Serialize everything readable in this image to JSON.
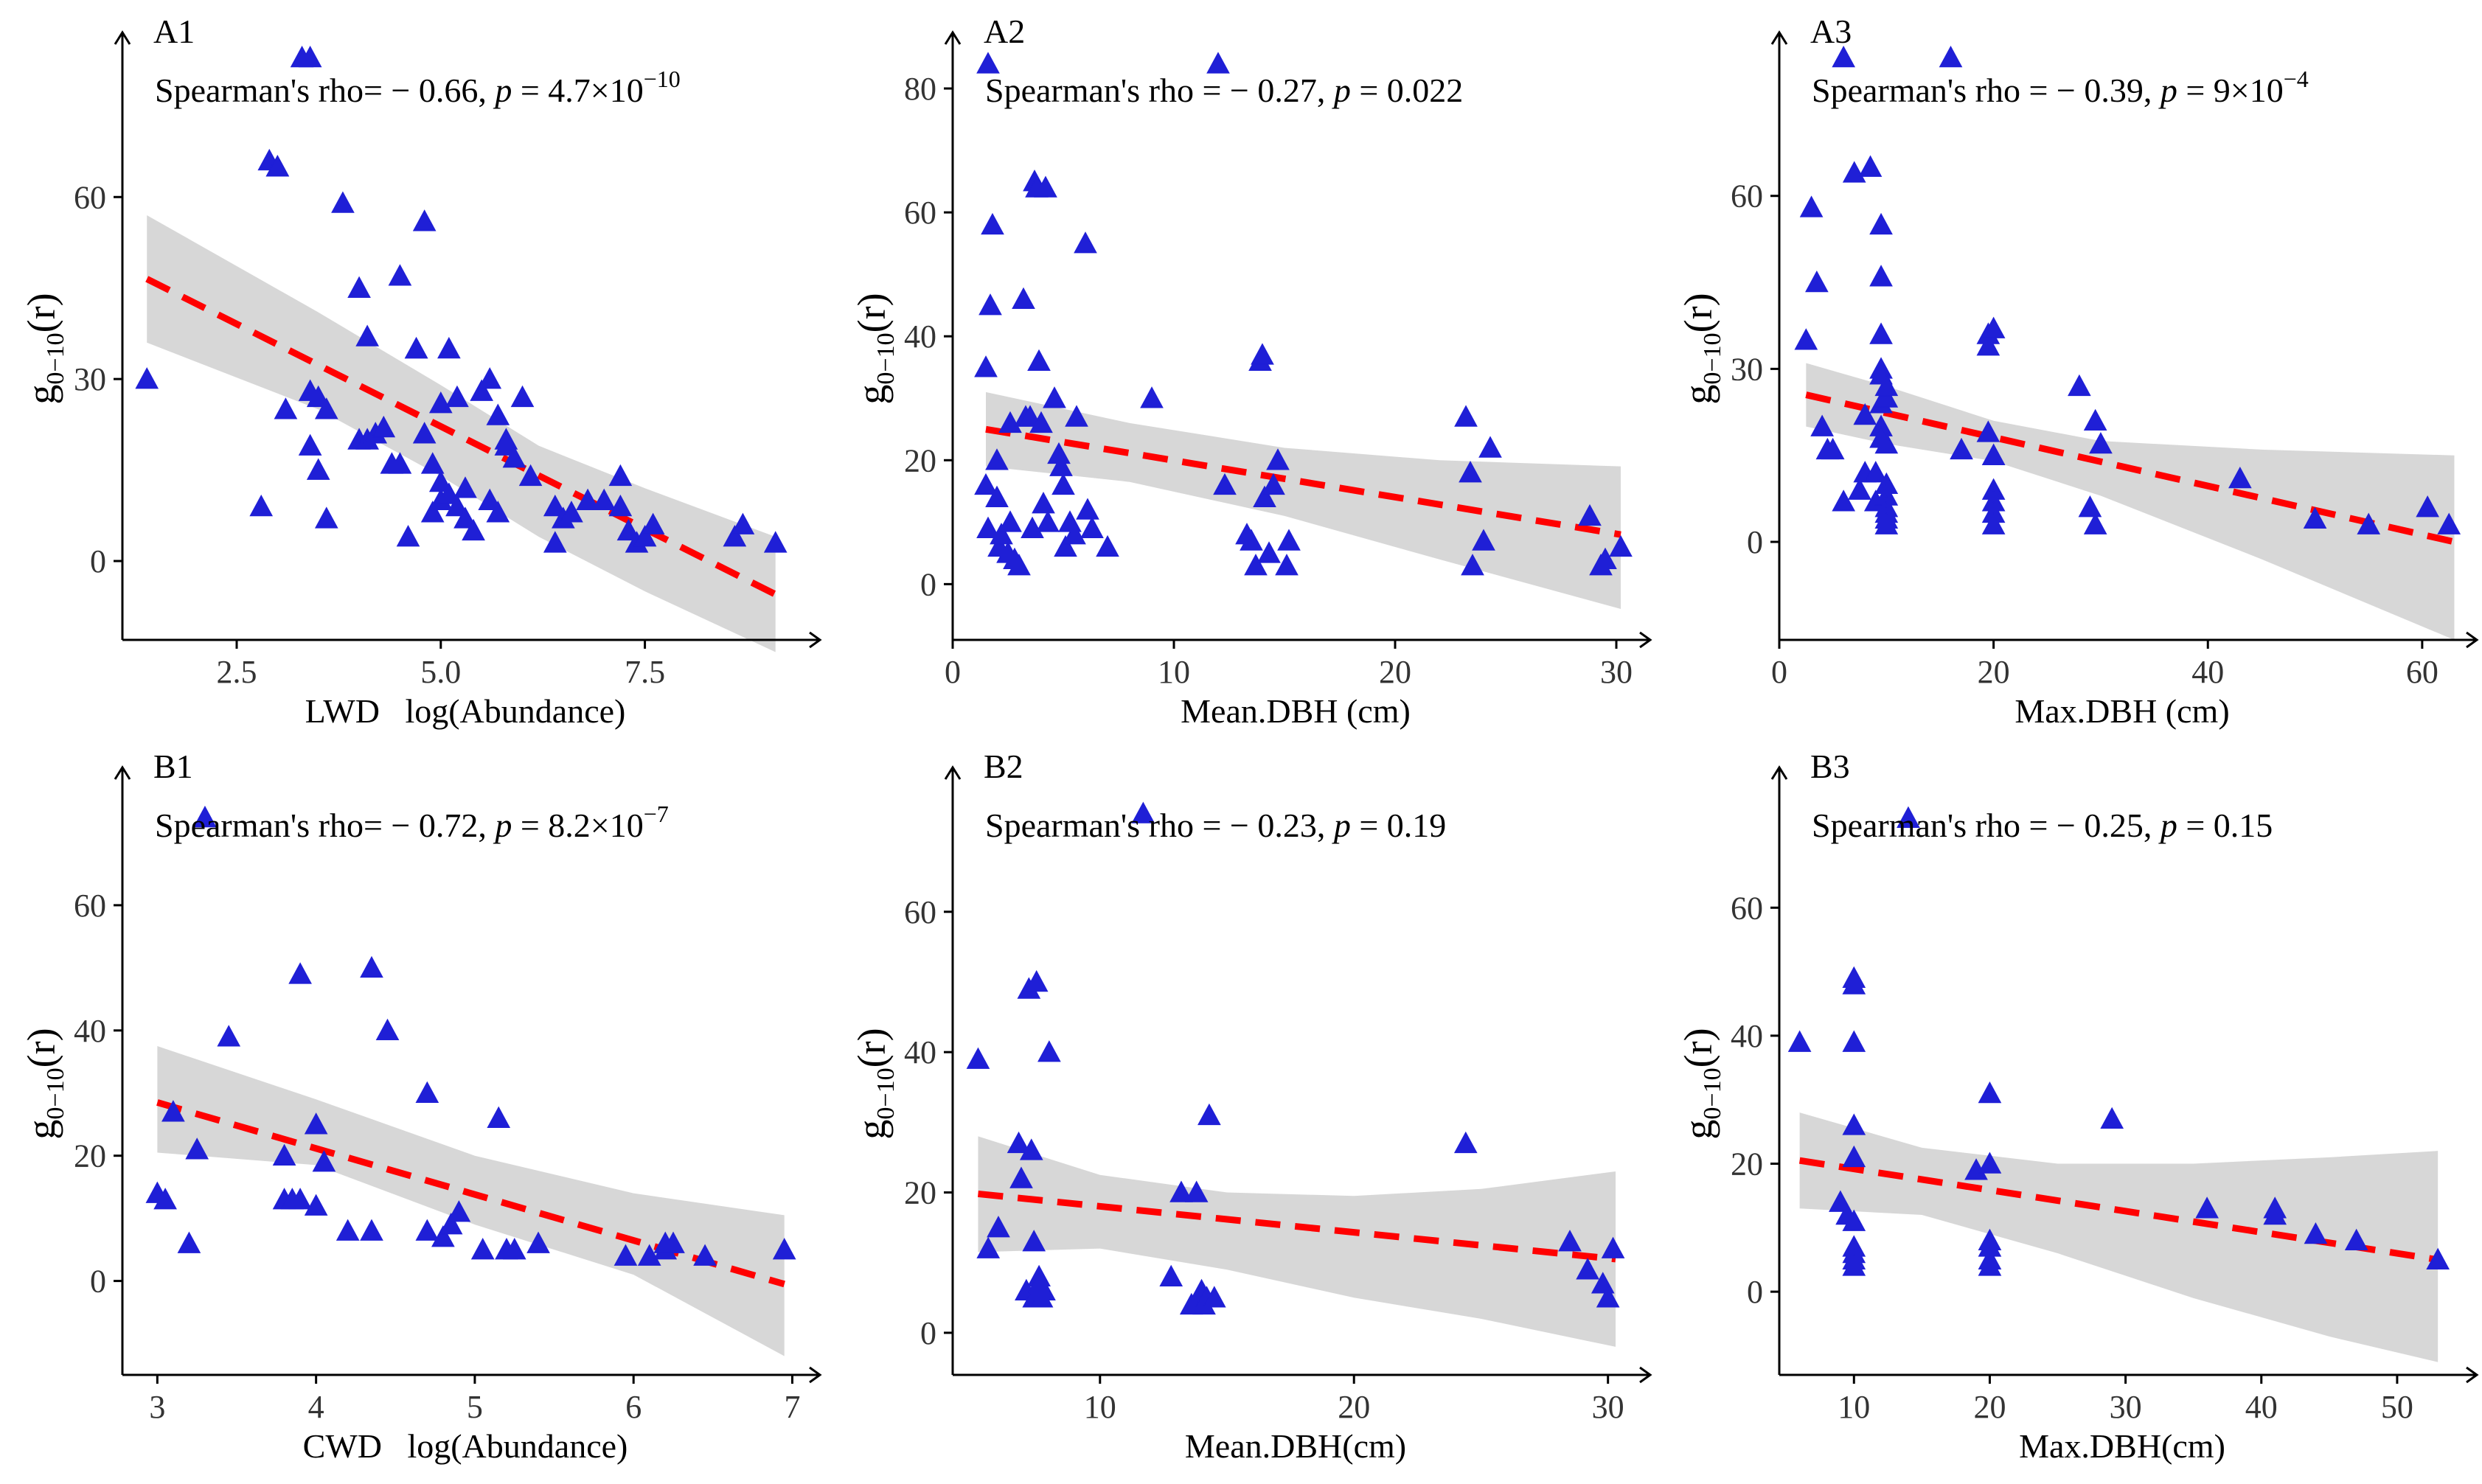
{
  "colors": {
    "points": "#1f1fd6",
    "trend": "#ff0000",
    "band": "#bdbdbd"
  },
  "chart_data": [
    {
      "id": "A1",
      "type": "scatter",
      "panel_label": "A1",
      "stat_prefix": "Spearman's rho= − 0.66, ",
      "p_label": "p",
      "p_rest": " = 4.7×10",
      "p_exp": "−10",
      "xlabel": "LWD   log(Abundance)",
      "ylabel_main": "g",
      "ylabel_sub": "0−10",
      "ylabel_tail": "(r)",
      "xlim": [
        1.1,
        9.5
      ],
      "ylim": [
        -13,
        83
      ],
      "xticks": [
        2.5,
        5.0,
        7.5
      ],
      "xtick_labels": [
        "2.5",
        "5.0",
        "7.5"
      ],
      "yticks": [
        0,
        30,
        60
      ],
      "ytick_labels": [
        "0",
        "30",
        "60"
      ],
      "trend": [
        [
          1.4,
          46.5
        ],
        [
          9.1,
          -5.5
        ]
      ],
      "band_upper": [
        [
          1.4,
          57
        ],
        [
          3.5,
          41
        ],
        [
          5.0,
          29
        ],
        [
          6.2,
          19
        ],
        [
          7.5,
          12
        ],
        [
          9.1,
          4
        ]
      ],
      "band_lower": [
        [
          1.4,
          36
        ],
        [
          3.5,
          25
        ],
        [
          5.0,
          14
        ],
        [
          6.2,
          4
        ],
        [
          7.5,
          -5
        ],
        [
          9.1,
          -15
        ]
      ],
      "x": [
        1.4,
        2.8,
        2.9,
        3.0,
        3.0,
        3.1,
        3.3,
        3.4,
        3.4,
        3.4,
        3.5,
        3.5,
        3.6,
        3.6,
        3.8,
        4.0,
        4.0,
        4.1,
        4.1,
        4.2,
        4.3,
        4.4,
        4.5,
        4.5,
        4.6,
        4.7,
        4.7,
        4.8,
        4.8,
        4.9,
        4.9,
        5.0,
        5.0,
        5.0,
        5.1,
        5.1,
        5.2,
        5.2,
        5.3,
        5.3,
        5.4,
        5.5,
        5.6,
        5.6,
        5.7,
        5.7,
        5.8,
        5.8,
        5.9,
        6.0,
        6.1,
        6.4,
        6.4,
        6.5,
        6.6,
        6.8,
        7.0,
        7.2,
        7.2,
        7.3,
        7.4,
        7.5,
        7.6,
        8.6,
        8.7,
        9.1
      ],
      "y": [
        30,
        9,
        66,
        65,
        65,
        25,
        83,
        83,
        28,
        19,
        15,
        27,
        25,
        7,
        59,
        45,
        20,
        37,
        20,
        21,
        22,
        16,
        47,
        16,
        4,
        35,
        35,
        56,
        21,
        16,
        8,
        13,
        26,
        10,
        35,
        11,
        27,
        9,
        12,
        7,
        5,
        28,
        30,
        10,
        8,
        24,
        20,
        19,
        17,
        27,
        14,
        9,
        3,
        7,
        8,
        10,
        10,
        14,
        9,
        5,
        3,
        4,
        6,
        4,
        6,
        3
      ]
    },
    {
      "id": "A2",
      "type": "scatter",
      "panel_label": "A2",
      "stat_prefix": "Spearman's rho = − 0.27, ",
      "p_label": "p",
      "p_rest": " = 0.022",
      "p_exp": "",
      "xlabel": "Mean.DBH (cm)",
      "ylabel_main": "g",
      "ylabel_sub": "0−10",
      "ylabel_tail": "(r)",
      "xlim": [
        0,
        31
      ],
      "ylim": [
        -9,
        85
      ],
      "xticks": [
        0,
        10,
        20,
        30
      ],
      "xtick_labels": [
        "0",
        "10",
        "20",
        "30"
      ],
      "yticks": [
        0,
        20,
        40,
        60,
        80
      ],
      "ytick_labels": [
        "0",
        "20",
        "40",
        "60",
        "80"
      ],
      "trend": [
        [
          1.5,
          25
        ],
        [
          30.2,
          8
        ]
      ],
      "band_upper": [
        [
          1.5,
          31
        ],
        [
          8,
          26
        ],
        [
          15,
          22
        ],
        [
          22,
          20
        ],
        [
          30.2,
          19
        ]
      ],
      "band_lower": [
        [
          1.5,
          19
        ],
        [
          8,
          16.5
        ],
        [
          15,
          11
        ],
        [
          22,
          4
        ],
        [
          30.2,
          -4
        ]
      ],
      "x": [
        1.5,
        1.5,
        1.6,
        1.6,
        1.7,
        1.8,
        2.0,
        2.0,
        2.1,
        2.2,
        2.5,
        2.6,
        2.6,
        2.8,
        3.0,
        3.2,
        3.3,
        3.5,
        3.6,
        3.7,
        3.8,
        3.9,
        4.0,
        4.1,
        4.2,
        4.3,
        4.6,
        4.8,
        4.9,
        5.0,
        5.1,
        5.3,
        5.5,
        5.6,
        6.0,
        6.1,
        6.3,
        7.0,
        9.0,
        12.0,
        12.3,
        13.3,
        13.5,
        13.7,
        13.9,
        14.0,
        14.1,
        14.3,
        14.5,
        14.7,
        15.1,
        15.2,
        23.2,
        23.4,
        23.5,
        24.0,
        24.3,
        28.8,
        29.3,
        29.5,
        30.2
      ],
      "y": [
        35,
        16,
        84,
        9,
        45,
        58,
        20,
        14,
        6,
        8,
        5,
        26,
        10,
        4,
        3,
        46,
        27,
        27,
        9,
        65,
        64,
        36,
        26,
        13,
        64,
        10,
        30,
        21,
        19,
        16,
        6,
        10,
        8,
        27,
        55,
        12,
        9,
        6,
        30,
        84,
        16,
        8,
        7,
        3,
        36,
        37,
        14,
        5,
        16,
        20,
        3,
        7,
        27,
        18,
        3,
        7,
        22,
        11,
        3,
        4,
        6
      ]
    },
    {
      "id": "A3",
      "type": "scatter",
      "panel_label": "A3",
      "stat_prefix": "Spearman's rho = − 0.39, ",
      "p_label": "p",
      "p_rest": " = 9×10",
      "p_exp": "−4",
      "xlabel": "Max.DBH (cm)",
      "ylabel_main": "g",
      "ylabel_sub": "0−10",
      "ylabel_tail": "(r)",
      "xlim": [
        0,
        64
      ],
      "ylim": [
        -17,
        84
      ],
      "xticks": [
        0,
        20,
        40,
        60
      ],
      "xtick_labels": [
        "0",
        "20",
        "40",
        "60"
      ],
      "yticks": [
        0,
        30,
        60
      ],
      "ytick_labels": [
        "0",
        "30",
        "60"
      ],
      "trend": [
        [
          2.5,
          25.5
        ],
        [
          63,
          0
        ]
      ],
      "band_upper": [
        [
          2.5,
          31
        ],
        [
          10,
          27
        ],
        [
          20,
          21
        ],
        [
          30,
          17.5
        ],
        [
          45,
          16
        ],
        [
          63,
          15
        ]
      ],
      "band_lower": [
        [
          2.5,
          20
        ],
        [
          10,
          17
        ],
        [
          20,
          14
        ],
        [
          30,
          8
        ],
        [
          45,
          -3
        ],
        [
          63,
          -17
        ]
      ],
      "x": [
        2.5,
        3.0,
        3.5,
        4.0,
        4.5,
        5.0,
        6.0,
        6.0,
        7.0,
        7.5,
        8.0,
        8.0,
        8.5,
        9.0,
        9.0,
        9.5,
        9.5,
        9.5,
        9.5,
        9.5,
        9.5,
        9.5,
        9.5,
        10.0,
        10.0,
        10.0,
        10.0,
        10.0,
        10.0,
        10.0,
        10.0,
        10.0,
        16.0,
        17.0,
        19.5,
        19.5,
        19.5,
        20.0,
        20.0,
        20.0,
        20.0,
        20.0,
        20.0,
        20.0,
        28.0,
        29.0,
        29.5,
        29.5,
        30.0,
        43.0,
        50.0,
        55.0,
        60.5,
        62.5
      ],
      "y": [
        35,
        58,
        45,
        20,
        16,
        16,
        84,
        7,
        64,
        9,
        22,
        12,
        65,
        12,
        7,
        55,
        46,
        36,
        30,
        29,
        24,
        20,
        18,
        10,
        8,
        6,
        5,
        4,
        3,
        25,
        17,
        27,
        84,
        16,
        36,
        34,
        19,
        15,
        9,
        7,
        5,
        3,
        37,
        15,
        27,
        6,
        3,
        21,
        17,
        11,
        4,
        3,
        6,
        3
      ]
    },
    {
      "id": "B1",
      "type": "scatter",
      "panel_label": "B1",
      "stat_prefix": "Spearman's rho= − 0.72, ",
      "p_label": "p",
      "p_rest": " = 8.2×10",
      "p_exp": "−7",
      "xlabel": "CWD   log(Abundance)",
      "ylabel_main": "g",
      "ylabel_sub": "0−10",
      "ylabel_tail": "(r)",
      "xlim": [
        2.78,
        7.1
      ],
      "ylim": [
        -15,
        78
      ],
      "xticks": [
        3,
        4,
        5,
        6,
        7
      ],
      "xtick_labels": [
        "3",
        "4",
        "5",
        "6",
        "7"
      ],
      "yticks": [
        0,
        20,
        40,
        60
      ],
      "ytick_labels": [
        "0",
        "20",
        "40",
        "60"
      ],
      "trend": [
        [
          3.0,
          28.5
        ],
        [
          6.95,
          -0.5
        ]
      ],
      "band_upper": [
        [
          3.0,
          37.5
        ],
        [
          4.0,
          29
        ],
        [
          5.0,
          20
        ],
        [
          6.0,
          14
        ],
        [
          6.95,
          10.5
        ]
      ],
      "band_lower": [
        [
          3.0,
          20.5
        ],
        [
          4.0,
          18.5
        ],
        [
          5.0,
          9
        ],
        [
          6.0,
          1
        ],
        [
          6.95,
          -12
        ]
      ],
      "x": [
        3.0,
        3.05,
        3.1,
        3.2,
        3.25,
        3.3,
        3.45,
        3.8,
        3.8,
        3.85,
        3.9,
        3.9,
        4.0,
        4.0,
        4.05,
        4.2,
        4.35,
        4.35,
        4.45,
        4.7,
        4.7,
        4.8,
        4.85,
        4.9,
        5.05,
        5.15,
        5.2,
        5.25,
        5.4,
        5.95,
        6.1,
        6.2,
        6.2,
        6.25,
        6.45,
        6.95
      ],
      "y": [
        14,
        13,
        27,
        6,
        21,
        74,
        39,
        20,
        13,
        13,
        49,
        13,
        12,
        25,
        19,
        8,
        50,
        8,
        40,
        30,
        8,
        7,
        9,
        11,
        5,
        26,
        5,
        5,
        6,
        4,
        4,
        5,
        6,
        6,
        4,
        5
      ]
    },
    {
      "id": "B2",
      "type": "scatter",
      "panel_label": "B2",
      "stat_prefix": "Spearman's rho = − 0.23, ",
      "p_label": "p",
      "p_rest": " = 0.19",
      "p_exp": "",
      "xlabel": "Mean.DBH(cm)",
      "ylabel_main": "g",
      "ylabel_sub": "0−10",
      "ylabel_tail": "(r)",
      "xlim": [
        4.2,
        31.2
      ],
      "ylim": [
        -6,
        77
      ],
      "xticks": [
        10,
        20,
        30
      ],
      "xtick_labels": [
        "10",
        "20",
        "30"
      ],
      "yticks": [
        0,
        20,
        40,
        60
      ],
      "ytick_labels": [
        "0",
        "20",
        "40",
        "60"
      ],
      "trend": [
        [
          5.2,
          19.8
        ],
        [
          30.3,
          10.5
        ]
      ],
      "band_upper": [
        [
          5.2,
          28
        ],
        [
          10,
          22.5
        ],
        [
          15,
          20
        ],
        [
          20,
          19.5
        ],
        [
          25,
          20.5
        ],
        [
          30.3,
          23
        ]
      ],
      "band_lower": [
        [
          5.2,
          11.5
        ],
        [
          10,
          12
        ],
        [
          15,
          9
        ],
        [
          20,
          5
        ],
        [
          25,
          2
        ],
        [
          30.3,
          -2
        ]
      ],
      "x": [
        5.2,
        5.6,
        6.0,
        6.8,
        6.9,
        7.1,
        7.2,
        7.3,
        7.4,
        7.4,
        7.5,
        7.6,
        7.6,
        7.7,
        7.8,
        8.0,
        11.7,
        12.8,
        13.2,
        13.6,
        13.8,
        13.9,
        14.0,
        14.1,
        14.2,
        14.3,
        14.5,
        24.4,
        28.5,
        29.2,
        29.8,
        30.0,
        30.2
      ],
      "y": [
        39,
        12,
        15,
        27,
        22,
        6,
        49,
        26,
        5,
        13,
        50,
        8,
        7,
        5,
        6,
        40,
        74,
        8,
        20,
        4,
        20,
        5,
        6,
        4,
        5,
        31,
        5,
        27,
        13,
        9,
        7,
        5,
        12
      ]
    },
    {
      "id": "B3",
      "type": "scatter",
      "panel_label": "B3",
      "stat_prefix": "Spearman's rho = − 0.25, ",
      "p_label": "p",
      "p_rest": " = 0.15",
      "p_exp": "",
      "xlabel": "Max.DBH(cm)",
      "ylabel_main": "g",
      "ylabel_sub": "0−10",
      "ylabel_tail": "(r)",
      "xlim": [
        4.5,
        55
      ],
      "ylim": [
        -13,
        78
      ],
      "xticks": [
        10,
        20,
        30,
        40,
        50
      ],
      "xtick_labels": [
        "10",
        "20",
        "30",
        "40",
        "50"
      ],
      "yticks": [
        0,
        20,
        40,
        60
      ],
      "ytick_labels": [
        "0",
        "20",
        "40",
        "60"
      ],
      "trend": [
        [
          6,
          20.5
        ],
        [
          53,
          5
        ]
      ],
      "band_upper": [
        [
          6,
          28
        ],
        [
          15,
          22.5
        ],
        [
          25,
          20
        ],
        [
          35,
          20
        ],
        [
          45,
          21
        ],
        [
          53,
          22
        ]
      ],
      "band_lower": [
        [
          6,
          13
        ],
        [
          15,
          12
        ],
        [
          25,
          6
        ],
        [
          35,
          -1
        ],
        [
          45,
          -7
        ],
        [
          53,
          -11
        ]
      ],
      "x": [
        6,
        9,
        9.5,
        10,
        10,
        10,
        10,
        10,
        10,
        10,
        10,
        10,
        10,
        14,
        19,
        20,
        20,
        20,
        20,
        20,
        20,
        29,
        36,
        41,
        41,
        44,
        47,
        53
      ],
      "y": [
        39,
        14,
        12,
        49,
        48,
        39,
        26,
        21,
        11,
        7,
        6,
        5,
        4,
        74,
        19,
        31,
        20,
        8,
        7,
        5,
        4,
        27,
        13,
        13,
        12,
        9,
        8,
        5
      ]
    }
  ]
}
